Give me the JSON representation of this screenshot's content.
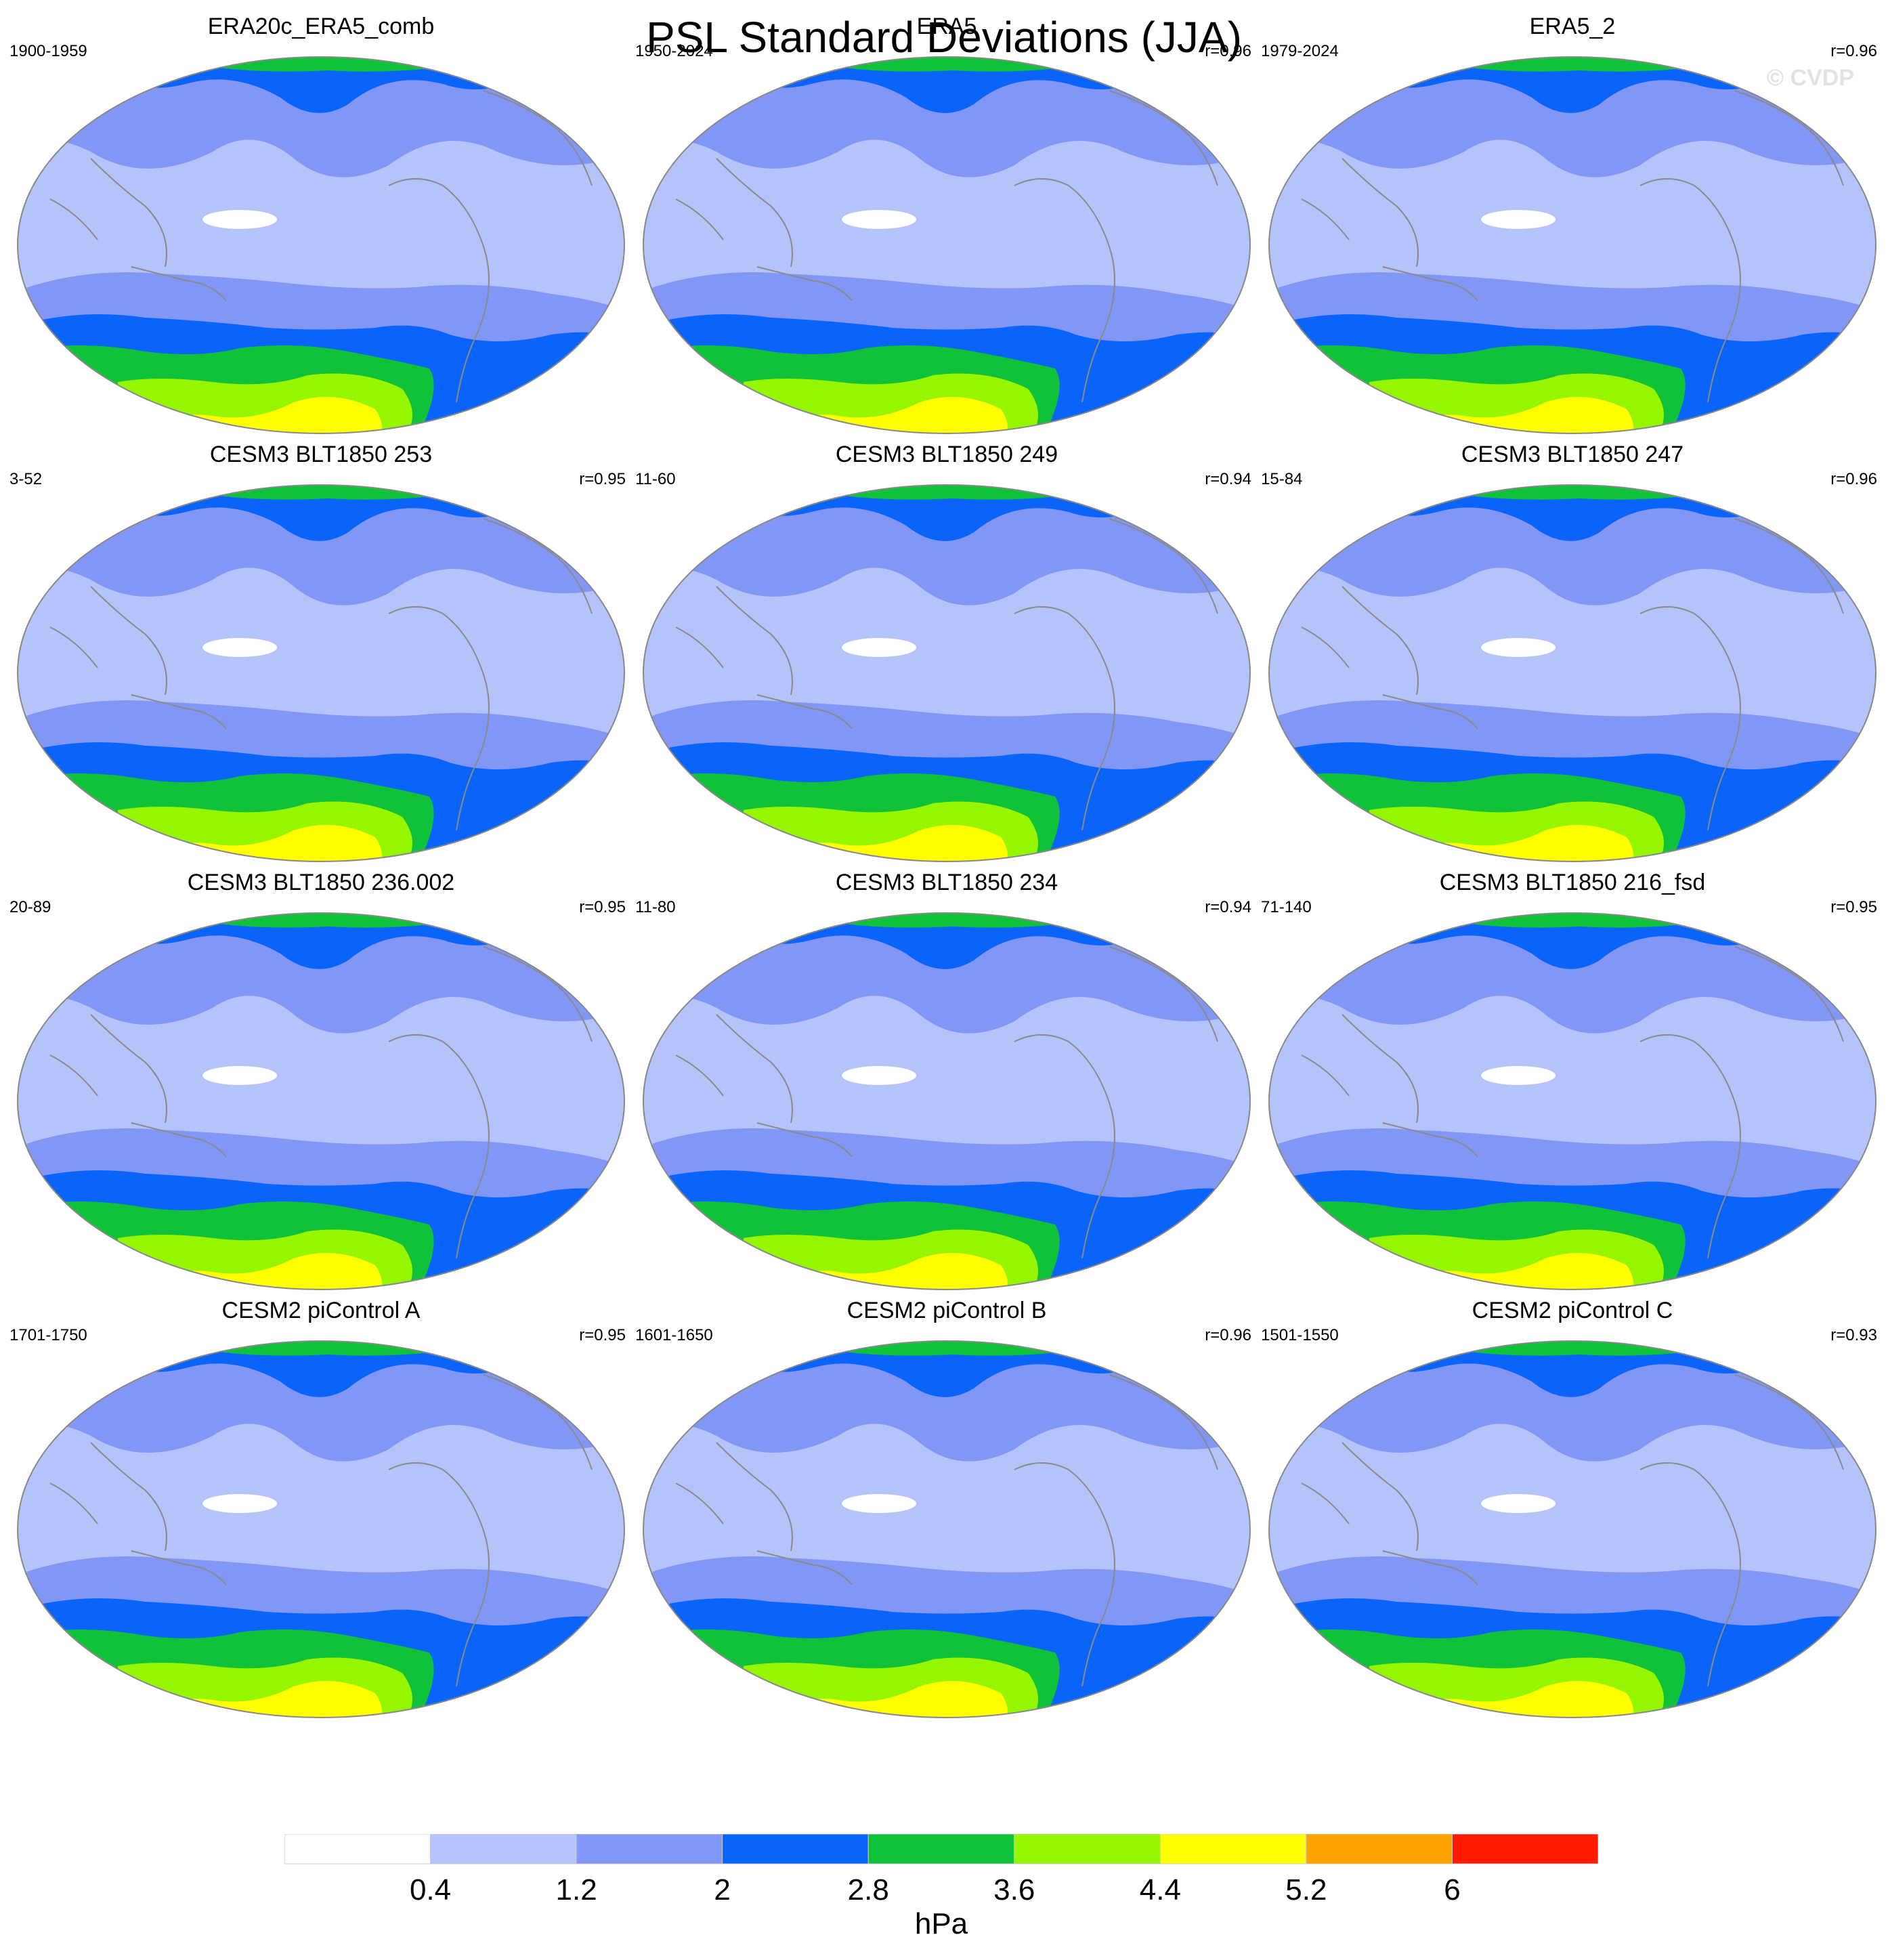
{
  "title": "PSL Standard Deviations (JJA)",
  "watermark": "© CVDP",
  "colors": {
    "levels": [
      "#ffffff",
      "#b4c3fa",
      "#8296f6",
      "#0a64fa",
      "#10c23a",
      "#96f500",
      "#ffff00",
      "#ffa100",
      "#ff1a00"
    ],
    "land_outline": "#8a8a8a",
    "frame": "#888888"
  },
  "colorbar": {
    "ticks": [
      "0.4",
      "1.2",
      "2",
      "2.8",
      "3.6",
      "4.4",
      "5.2",
      "6"
    ],
    "unit": "hPa"
  },
  "panels": [
    {
      "title": "ERA20c_ERA5_comb",
      "period": "1900-1959",
      "corr": ""
    },
    {
      "title": "ERA5",
      "period": "1950-2024",
      "corr": "r=0.96"
    },
    {
      "title": "ERA5_2",
      "period": "1979-2024",
      "corr": "r=0.96"
    },
    {
      "title": "CESM3 BLT1850 253",
      "period": "3-52",
      "corr": "r=0.95"
    },
    {
      "title": "CESM3 BLT1850 249",
      "period": "11-60",
      "corr": "r=0.94"
    },
    {
      "title": "CESM3 BLT1850 247",
      "period": "15-84",
      "corr": "r=0.96"
    },
    {
      "title": "CESM3 BLT1850 236.002",
      "period": "20-89",
      "corr": "r=0.95"
    },
    {
      "title": "CESM3 BLT1850 234",
      "period": "11-80",
      "corr": "r=0.94"
    },
    {
      "title": "CESM3 BLT1850 216_fsd",
      "period": "71-140",
      "corr": "r=0.95"
    },
    {
      "title": "CESM2 piControl A",
      "period": "1701-1750",
      "corr": "r=0.95"
    },
    {
      "title": "CESM2 piControl B",
      "period": "1601-1650",
      "corr": "r=0.96"
    },
    {
      "title": "CESM2 piControl C",
      "period": "1501-1550",
      "corr": "r=0.93"
    }
  ]
}
